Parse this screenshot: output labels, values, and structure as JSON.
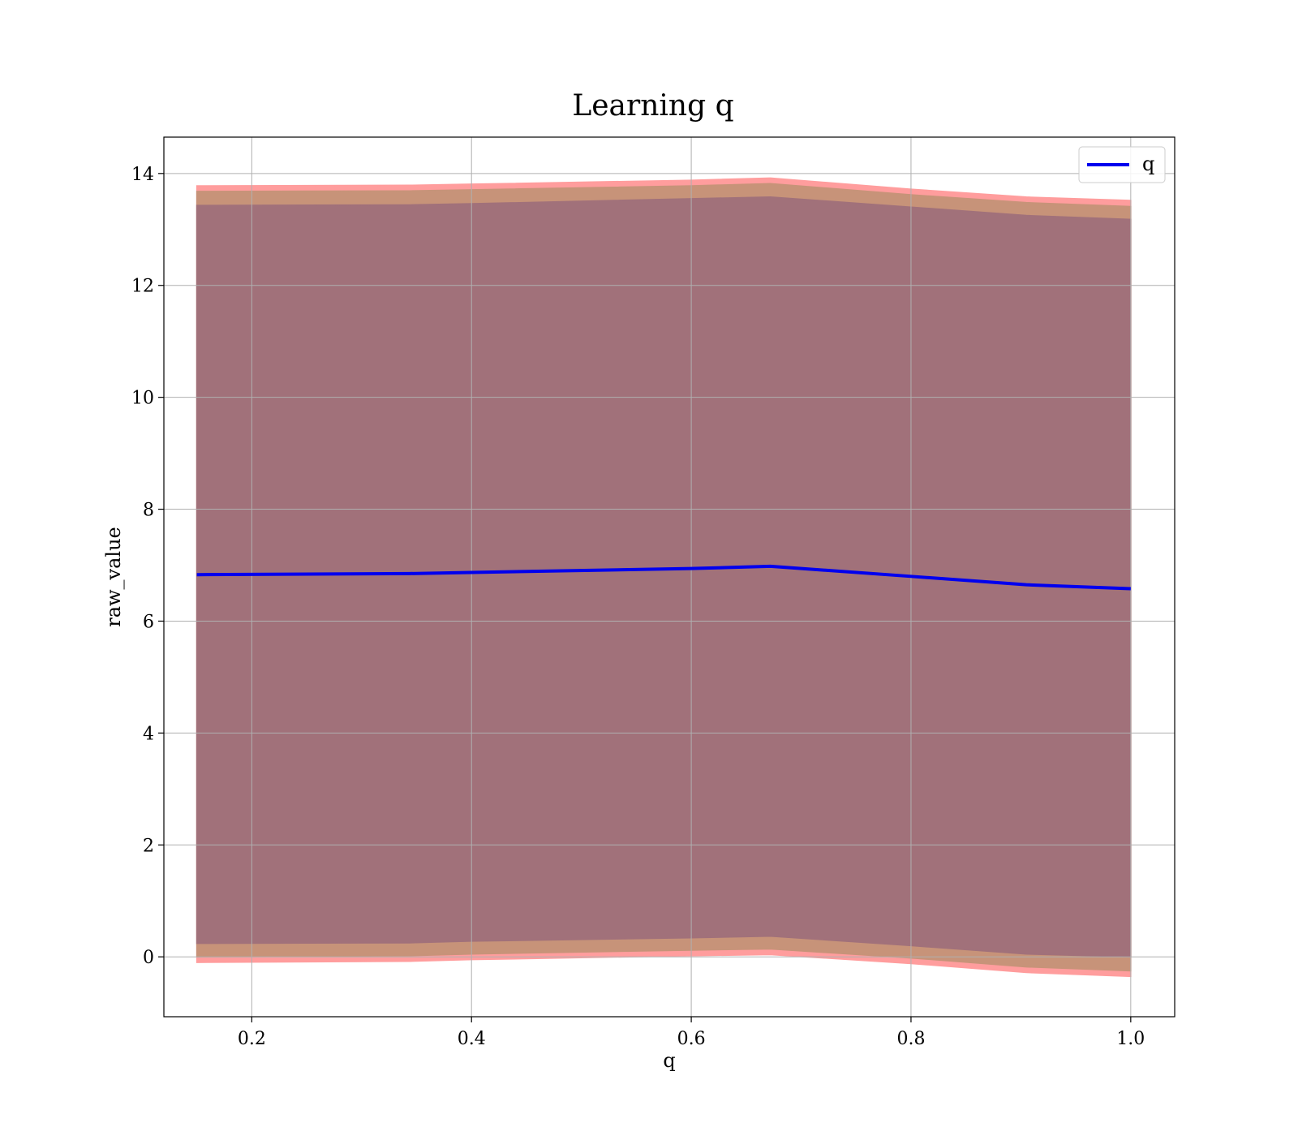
{
  "chart_data": {
    "type": "line",
    "title": "Learning q",
    "xlabel": "q",
    "ylabel": "raw_value",
    "xlim": [
      0.12,
      1.04
    ],
    "ylim": [
      -1.07,
      14.65
    ],
    "xticks": [
      0.2,
      0.4,
      0.6,
      0.8,
      1.0
    ],
    "xtick_labels": [
      "0.2",
      "0.4",
      "0.6",
      "0.8",
      "1.0"
    ],
    "yticks": [
      0,
      2,
      4,
      6,
      8,
      10,
      12,
      14
    ],
    "ytick_labels": [
      "0",
      "2",
      "4",
      "6",
      "8",
      "10",
      "12",
      "14"
    ],
    "grid": true,
    "legend_position": "top-right",
    "x": [
      0.15,
      0.344,
      0.4,
      0.6,
      0.672,
      0.8,
      0.905,
      1.0
    ],
    "series": [
      {
        "name": "q",
        "color": "#0000ee",
        "values": [
          6.83,
          6.85,
          6.87,
          6.94,
          6.98,
          6.8,
          6.65,
          6.58
        ]
      }
    ],
    "bands": [
      {
        "color": "#ff9d9d",
        "upper": [
          13.78,
          13.79,
          13.81,
          13.88,
          13.92,
          13.72,
          13.58,
          13.52
        ],
        "lower": [
          -0.1,
          -0.08,
          -0.05,
          0.02,
          0.04,
          -0.12,
          -0.28,
          -0.35
        ]
      },
      {
        "color": "#c79379",
        "upper": [
          13.68,
          13.69,
          13.71,
          13.78,
          13.82,
          13.62,
          13.48,
          13.41
        ],
        "lower": [
          0.0,
          0.02,
          0.05,
          0.12,
          0.14,
          -0.02,
          -0.18,
          -0.25
        ]
      },
      {
        "color": "#a1717a",
        "upper": [
          13.43,
          13.44,
          13.46,
          13.55,
          13.58,
          13.4,
          13.25,
          13.18
        ],
        "lower": [
          0.24,
          0.25,
          0.28,
          0.34,
          0.37,
          0.2,
          0.05,
          0.0
        ]
      }
    ]
  }
}
